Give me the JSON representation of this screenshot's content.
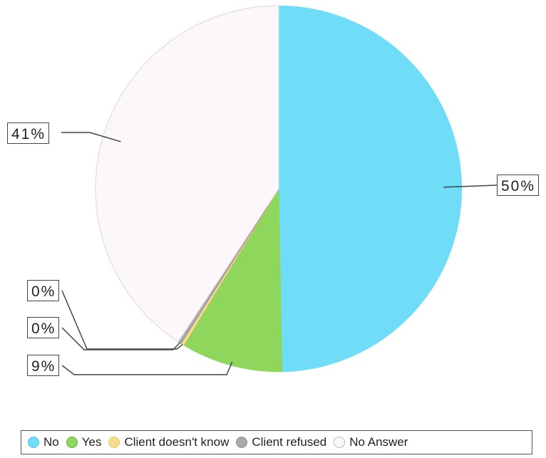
{
  "chart_data": {
    "type": "pie",
    "title": "",
    "series": [
      {
        "name": "No",
        "value": 50,
        "color": "#6fdcf8"
      },
      {
        "name": "Yes",
        "value": 9,
        "color": "#8ed65c"
      },
      {
        "name": "Client doesn't know",
        "value": 0.3,
        "color": "#f6dc8c"
      },
      {
        "name": "Client refused",
        "value": 0.3,
        "color": "#a9aaab"
      },
      {
        "name": "No Answer",
        "value": 41,
        "color": "#fbf7fb"
      }
    ],
    "data_labels": [
      "50%",
      "9%",
      "0%",
      "0%",
      "41%"
    ],
    "legend": {
      "placement": "bottom"
    }
  }
}
